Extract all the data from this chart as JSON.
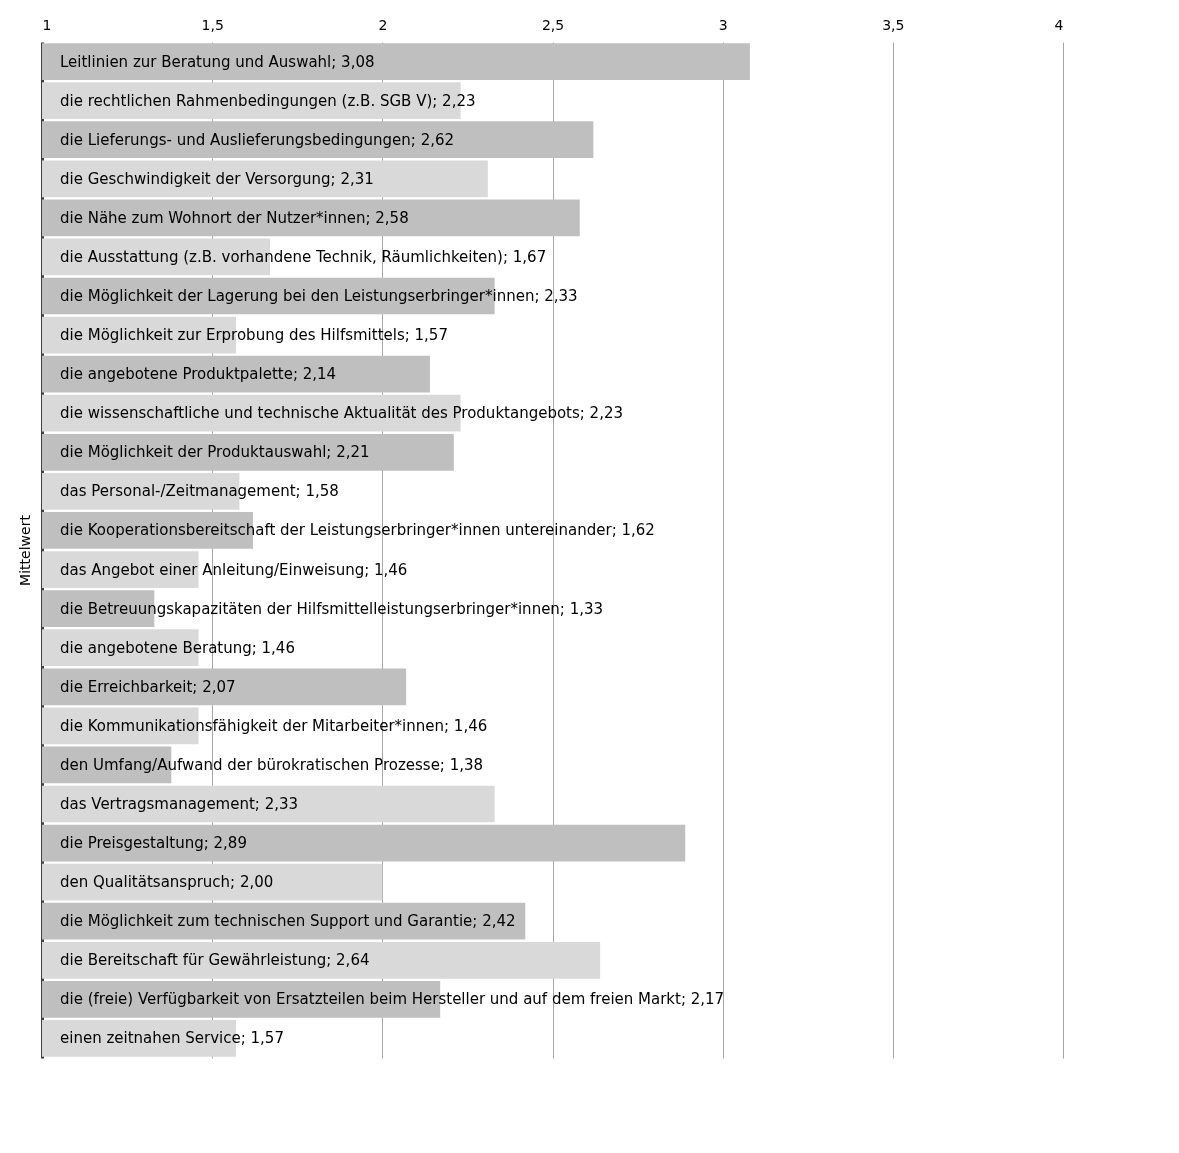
{
  "chart_data": {
    "type": "bar",
    "orientation": "horizontal",
    "ylabel": "Mittelwert",
    "categories": [
      "Leitlinien zur Beratung und Auswahl; 3,08",
      "die rechtlichen Rahmenbedingungen (z.B. SGB V); 2,23",
      "die Lieferungs- und Auslieferungsbedingungen; 2,62",
      "die Geschwindigkeit der Versorgung; 2,31",
      "die Nähe zum Wohnort der Nutzer*innen; 2,58",
      "die Ausstattung (z.B. vorhandene Technik, Räumlichkeiten); 1,67",
      "die Möglichkeit der Lagerung bei den Leistungserbringer*innen; 2,33",
      "die Möglichkeit zur Erprobung des Hilfsmittels; 1,57",
      "die angebotene Produktpalette; 2,14",
      "die wissenschaftliche und technische Aktualität des Produktangebots; 2,23",
      "die Möglichkeit der Produktauswahl; 2,21",
      "das Personal-/Zeitmanagement; 1,58",
      "die Kooperationsbereitschaft der Leistungserbringer*innen untereinander; 1,62",
      "das Angebot einer Anleitung/Einweisung; 1,46",
      "die Betreuungskapazitäten der Hilfsmittelleistungserbringer*innen; 1,33",
      "die angebotene Beratung; 1,46",
      "die Erreichbarkeit; 2,07",
      "die Kommunikationsfähigkeit der Mitarbeiter*innen; 1,46",
      "den Umfang/Aufwand der bürokratischen Prozesse; 1,38",
      "das Vertragsmanagement; 2,33",
      "die Preisgestaltung; 2,89",
      "den Qualitätsanspruch; 2,00",
      "die Möglichkeit zum technischen Support und Garantie; 2,42",
      "die Bereitschaft für Gewährleistung; 2,64",
      "die (freie) Verfügbarkeit von Ersatzteilen beim Hersteller und auf dem freien Markt; 2,17",
      "einen zeitnahen Service; 1,57"
    ],
    "values": [
      3.08,
      2.23,
      2.62,
      2.31,
      2.58,
      1.67,
      2.33,
      1.57,
      2.14,
      2.23,
      2.21,
      1.58,
      1.62,
      1.46,
      1.33,
      1.46,
      2.07,
      1.46,
      1.38,
      2.33,
      2.89,
      2.0,
      2.42,
      2.64,
      2.17,
      1.57
    ],
    "colors": [
      "#bfbfbf",
      "#d9d9d9",
      "#bfbfbf",
      "#d9d9d9",
      "#bfbfbf",
      "#d9d9d9",
      "#bfbfbf",
      "#d9d9d9",
      "#bfbfbf",
      "#d9d9d9",
      "#bfbfbf",
      "#d9d9d9",
      "#bfbfbf",
      "#d9d9d9",
      "#bfbfbf",
      "#d9d9d9",
      "#bfbfbf",
      "#d9d9d9",
      "#bfbfbf",
      "#d9d9d9",
      "#bfbfbf",
      "#d9d9d9",
      "#bfbfbf",
      "#d9d9d9",
      "#bfbfbf",
      "#d9d9d9"
    ],
    "xlim": [
      1,
      4
    ],
    "xticks": [
      1,
      {
        "value": 1.5,
        "label": "1,5"
      },
      2,
      {
        "value": 2.5,
        "label": "2,5"
      },
      3,
      {
        "value": 3.5,
        "label": "3,5"
      },
      4
    ],
    "grid": "x",
    "tick_labels": "x"
  }
}
